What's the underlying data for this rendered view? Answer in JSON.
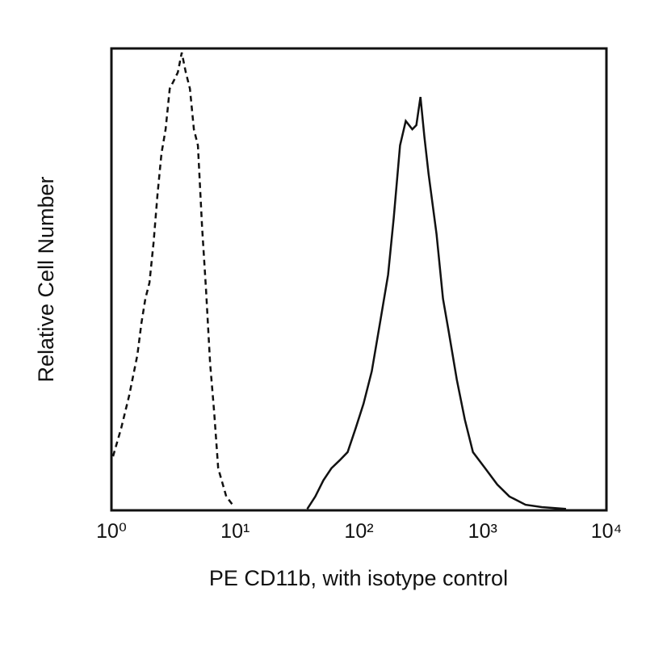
{
  "chart_data": {
    "type": "line",
    "x_label": "PE CD11b, with isotype control",
    "y_label": "Relative Cell Number",
    "xscale": "log",
    "xlim": [
      1,
      10000
    ],
    "ylim": [
      0,
      100
    ],
    "xticks": [
      {
        "value": 1,
        "label": "10⁰"
      },
      {
        "value": 10,
        "label": "10¹"
      },
      {
        "value": 100,
        "label": "10²"
      },
      {
        "value": 1000,
        "label": "10³"
      },
      {
        "value": 10000,
        "label": "10⁴"
      }
    ],
    "series": [
      {
        "color": "#111111",
        "dashed": true,
        "x": [
          1.03,
          1.2,
          1.39,
          1.62,
          1.75,
          1.88,
          2.03,
          2.19,
          2.36,
          2.54,
          2.74,
          2.96,
          3.19,
          3.44,
          3.7,
          3.99,
          4.31,
          4.64,
          5.0,
          5.4,
          5.82,
          6.27,
          6.76,
          7.29,
          8.47,
          9.85
        ],
        "values": [
          11.7,
          17.8,
          24.8,
          33.6,
          40.6,
          45.8,
          49.3,
          58,
          68.5,
          77.3,
          82.5,
          91.3,
          93,
          94.8,
          99.1,
          94.8,
          91.3,
          82.5,
          79,
          61.5,
          47.6,
          31.8,
          21.3,
          9.1,
          3,
          0.7
        ]
      },
      {
        "color": "#111111",
        "dashed": false,
        "x": [
          38.2,
          44.4,
          51.6,
          59.9,
          69.7,
          81,
          94.1,
          109,
          127,
          148,
          172,
          191,
          215,
          239,
          270,
          291,
          314,
          338,
          365,
          424,
          478,
          531,
          618,
          718,
          835,
          1047,
          1312,
          1643,
          2219,
          3000,
          4712
        ],
        "values": [
          0.3,
          3,
          6.5,
          9.1,
          10.8,
          12.6,
          17.8,
          23.1,
          30.1,
          40.6,
          51,
          63.3,
          79,
          84.3,
          82.5,
          83.4,
          89.5,
          80.8,
          72.9,
          59.8,
          45.8,
          38.8,
          28.3,
          19.6,
          12.6,
          9.1,
          5.6,
          3,
          1.2,
          0.7,
          0.3
        ]
      }
    ]
  }
}
